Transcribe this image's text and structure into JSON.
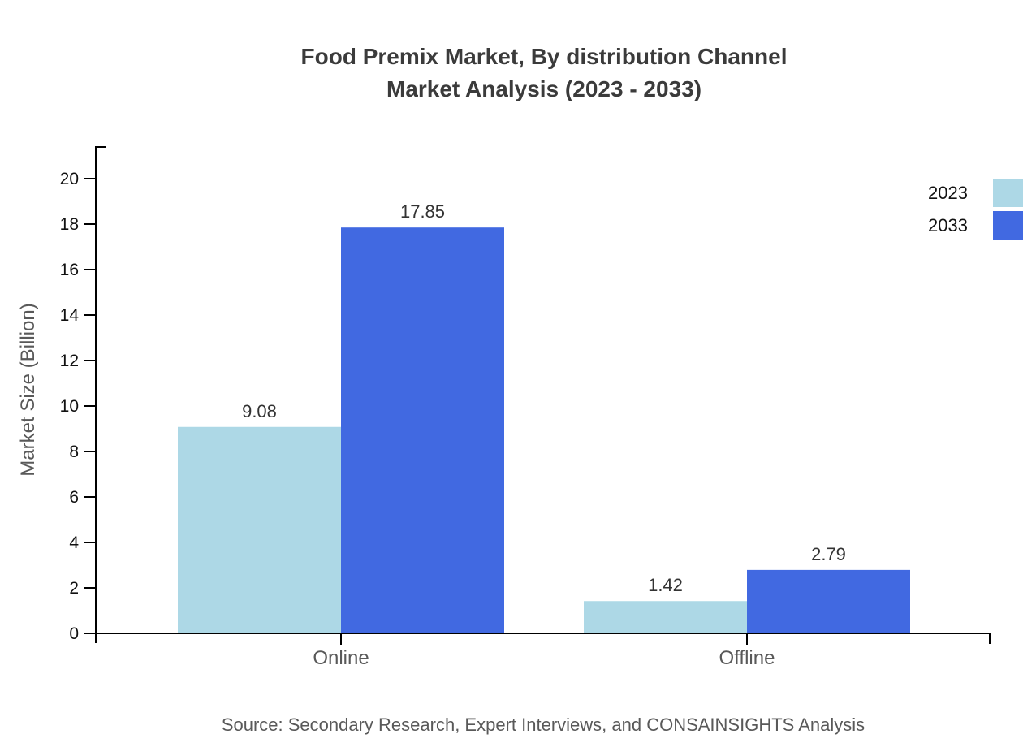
{
  "title": {
    "line1": "Food Premix Market, By distribution Channel",
    "line2": "Market Analysis (2023 - 2033)"
  },
  "source": "Source: Secondary Research, Expert Interviews, and CONSAINSIGHTS Analysis",
  "chart_data": {
    "type": "bar",
    "title": "Food Premix Market, By distribution Channel Market Analysis (2023 - 2033)",
    "categories": [
      "Online",
      "Offline"
    ],
    "series": [
      {
        "name": "2023",
        "color": "#ADD8E6",
        "values": [
          9.08,
          1.42
        ],
        "value_labels": [
          "9.08",
          "1.42"
        ]
      },
      {
        "name": "2033",
        "color": "#4169E1",
        "values": [
          17.85,
          2.79
        ],
        "value_labels": [
          "17.85",
          "2.79"
        ]
      }
    ],
    "xlabel": "",
    "ylabel": "Market Size (Billion)",
    "ylim": [
      0,
      21.5
    ],
    "yticks": [
      0,
      2,
      4,
      6,
      8,
      10,
      12,
      14,
      16,
      18,
      20
    ],
    "grid": false,
    "legend_position": "top-right"
  },
  "colors": {
    "series_2023": "#ADD8E6",
    "series_2033": "#4169E1",
    "axis": "#000000",
    "tick_label": "#111111",
    "category_label": "#595959",
    "value_label": "#333333",
    "title": "#3b3b3b",
    "muted_text": "#595959"
  }
}
